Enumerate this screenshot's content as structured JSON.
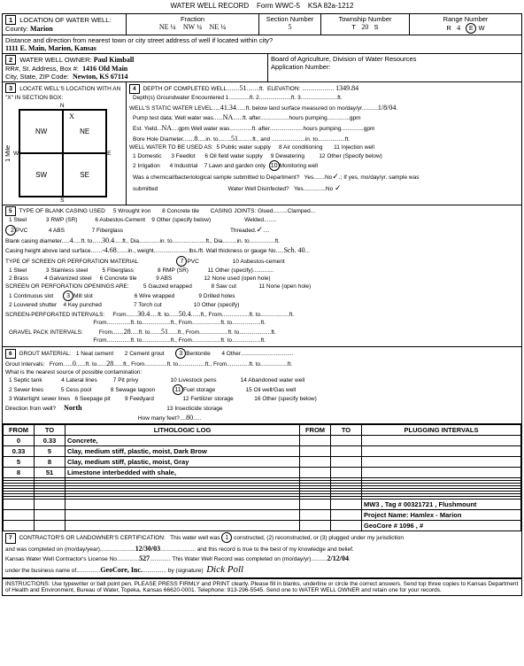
{
  "form": {
    "title": "WATER WELL RECORD",
    "code": "Form WWC-5",
    "ksa": "KSA 82a-1212"
  },
  "sec1": {
    "label": "LOCATION OF WATER WELL:",
    "county_label": "County:",
    "county": "Marion",
    "fraction_label": "Fraction",
    "f1": "NE ¼",
    "f2": "NW ¼",
    "f3": "NE ¼",
    "section_label": "Section Number",
    "section": "5",
    "township_label": "Township Number",
    "township_t": "T",
    "township": "20",
    "township_s": "S",
    "range_label": "Range Number",
    "range_r": "R",
    "range": "4",
    "range_e": "E",
    "range_w": "W",
    "dist_label": "Distance and direction from nearest town or city street address of well if located within city?",
    "dist": "1111 E. Main, Marion, Kansas"
  },
  "sec2": {
    "label": "WATER WELL OWNER:",
    "name": "Paul Kimball",
    "addr_label": "RR#, St. Address, Box #",
    "addr": "1416 Old Main",
    "city_label": "City, State, ZIP Code",
    "city": "Newton, KS  67114",
    "board": "Board of Agriculture, Division of Water Resources",
    "appno": "Application Number:"
  },
  "sec3": {
    "label": "LOCATE WELL'S LOCATION WITH AN \"X\" IN SECTION BOX:",
    "nw": "NW",
    "ne": "NE",
    "sw": "SW",
    "se": "SE",
    "n": "N",
    "s": "S",
    "e": "E",
    "w": "W",
    "mile": "1 Mile"
  },
  "sec4": {
    "label": "DEPTH OF COMPLETED WELL",
    "depth": "51",
    "ft": "ft.",
    "elev_label": "ELEVATION:",
    "elev": "1349.84",
    "gw_label": "Depth(s) Groundwater Encountered",
    "gw1": "1.",
    "gwft2": "ft.  2.",
    "gwft3": "ft.  3.",
    "gwend": "ft.",
    "swl_label": "WELL'S STATIC WATER LEVEL",
    "swl": "41.34",
    "swl_after": "ft. below land surface measured on mo/day/yr",
    "swl_date": "1/8/04",
    "pump_label": "Pump test data:  Well water was",
    "na": "NA",
    "after_label": "ft. after",
    "hours_label": "hours pumping",
    "gpm": "gpm",
    "est_label": "Est. Yield",
    "est_na": "NA",
    "est_gpm": "gpm  Well water was",
    "bore_label": "Bore Hole Diameter",
    "bore1": "8",
    "in_to": "in. to",
    "bore2": "51",
    "ft_and": "ft., and",
    "in_to2": "in. to",
    "ft_end": "ft.",
    "use_label": "WELL WATER TO BE USED AS:",
    "u1": "1 Domestic",
    "u2": "2 Irrigation",
    "u3": "3 Feedlot",
    "u4": "4 Industrial",
    "u5": "5 Public water supply",
    "u6": "6 Oil field water supply",
    "u7": "7 Lawn and garden only",
    "u8": "8 Air conditioning",
    "u9": "9 Dewatering",
    "u10": "10",
    "u10b": "Monitoring well",
    "u11": "11 Injection well",
    "u12": "12 Other (Specify below)",
    "chem_label": "Was a chemical/bacteriological sample submitted to Department?",
    "yes": "Yes",
    "no": "No",
    "checkNo": "✓",
    "if_yes": "If yes, mo/day/yr. sample was",
    "sub_label": "submitted",
    "disinf_label": "Water Well Disinfected?",
    "disinf_yes": "Yes",
    "disinf_no": "No",
    "checkNo2": "✓"
  },
  "sec5": {
    "label": "TYPE OF BLANK CASING USED",
    "c1": "1 Steel",
    "c2": "2",
    "c2b": "PVC",
    "c3": "3 RWP (SR)",
    "c4": "4 ABS",
    "c5": "5 Wrought iron",
    "c6": "6 Asbestos-Cement",
    "c7": "7 Fiberglass",
    "c8": "8 Concrete tile",
    "c9": "9 Other (specify below)",
    "joints_label": "CASING JOINTS:",
    "j_glued": "Glued",
    "j_clamp": "Clamped",
    "j_weld": "Welded",
    "j_thread": "Threaded",
    "check": "✓",
    "diam_label": "Blank casing diameter",
    "diam": "4",
    "to": "ft. to",
    "diam2": "30.4",
    "ftdia": "ft., Dia",
    "in_to": "in. to",
    "ft_dia2": "ft., Dia",
    "inend": "in. to",
    "ftend": "ft.",
    "height_label": "Casing height above land surface",
    "height": "-4.68",
    "wt_label": "in., weight",
    "wt_unit": "lbs./ft.  Wall thickness or gauge No.",
    "sch": "Sch. 40",
    "screen_label": "TYPE OF SCREEN OR PERFORATION MATERIAL",
    "s1": "1 Steel",
    "s2": "2 Brass",
    "s3": "3 Stainless steel",
    "s4": "4 Galvanized steel",
    "s5": "5 Fiberglass",
    "s6": "6 Concrete tile",
    "s7": "7",
    "s7b": "PVC",
    "s8": "8 RMP (SR)",
    "s9": "9 ABS",
    "s10": "10 Asbestos-cement",
    "s11": "11 Other (specify)",
    "s12": "12 None used (open hole)",
    "open_label": "SCREEN OR PERFORATION OPENINGS ARE:",
    "o1": "1 Continuous slot",
    "o2": "2 Louvered shutter",
    "o3": "3",
    "o3b": "Mill slot",
    "o4": "4 Key punched",
    "o5": "5 Gauzed wrapped",
    "o6": "6 Wire wrapped",
    "o7": "7 Torch cut",
    "o8": "8 Saw cut",
    "o9": "9 Drilled holes",
    "o10": "10 Other (specify)",
    "o11": "11 None (open hole)",
    "sperf_label": "SCREEN-PERFORATED INTERVALS:",
    "from": "From",
    "p1a": "30.4",
    "p1b": "50.4",
    "ft": "ft.",
    "from2": "From",
    "to2": "ft. to",
    "gravel_label": "GRAVEL PACK INTERVALS:",
    "g1a": "28",
    "g1b": "51"
  },
  "sec6": {
    "label": "GROUT MATERIAL:",
    "g1": "1 Neat cement",
    "g2": "2 Cement grout",
    "g3": "3",
    "g3b": "Bentonite",
    "g4": "4 Other",
    "gi_label": "Grout Intervals:",
    "from": "From",
    "gi1": "0",
    "to": "ft. to",
    "gi2": "28",
    "ft": "ft., From",
    "to2": "ft. to",
    "ft2": "ft., From",
    "ftend": "ft.",
    "contam_label": "What is the nearest source of possible contamination:",
    "n1": "1 Septic tank",
    "n2": "2 Sewer lines",
    "n3": "3 Watertight sewer lines",
    "n4": "4 Lateral lines",
    "n5": "5 Cess pool",
    "n6": "6 Seepage pit",
    "n7": "7 Pit privy",
    "n8": "8 Sewage lagoon",
    "n9": "9 Feedyard",
    "n10": "10 Livestock pens",
    "n11": "11",
    "n11b": "Fuel storage",
    "n12": "12 Fertilizer storage",
    "n13": "13 Insecticide storage",
    "n14": "14 Abandoned water well",
    "n15": "15 Oil well/Gas well",
    "n16": "16 Other (specify below)",
    "dir_label": "Direction from well?",
    "dir": "North",
    "dist_label": "How many feet?",
    "dist": "80"
  },
  "log": {
    "hdr": {
      "from": "FROM",
      "to": "TO",
      "lith": "LITHOLOGIC LOG",
      "from2": "FROM",
      "to2": "TO",
      "plug": "PLUGGING INTERVALS"
    },
    "rows": [
      {
        "f": "0",
        "t": "0.33",
        "d": "Concrete,"
      },
      {
        "f": "0.33",
        "t": "5",
        "d": "Clay, medium stiff, plastic, moist, Dark Brow"
      },
      {
        "f": "5",
        "t": "8",
        "d": "Clay, medium stiff, plastic, moist, Gray"
      },
      {
        "f": "8",
        "t": "51",
        "d": "Limestone interbedded with shale,"
      }
    ],
    "note1": "MW3 , Tag # 00321721 , Flushmount",
    "note2": "Project Name: Hamlex - Marion",
    "note3": "GeoCore # 1096 , #"
  },
  "sec7": {
    "label": "CONTRACTOR'S OR LANDOWNER'S CERTIFICATION:",
    "text1": "This water well was",
    "circ1": "1",
    "text2": "constructed, (2) reconstructed, or (3) plugged under my jurisdiction",
    "text3": "and was completed on (mo/day/year)",
    "date1": "12/30/03",
    "text4": "and this record is true to the best of my knowledge and belief.",
    "lic_label": "Kansas Water Well Contractor's License No.",
    "lic": "527",
    "rec_label": "This Water Well Record was completed on (mo/day/yr)",
    "date2": "2/12/04",
    "bus_label": "under the business name of",
    "bus": "GeoCore, Inc.",
    "sig_label": "by (signature)",
    "sig": "signature"
  },
  "footer": "INSTRUCTIONS:  Use typewriter or ball point pen.  PLEASE PRESS FIRMLY and PRINT clearly.  Please fill in blanks, underline or circle the correct answers.  Send top three copies to Kansas Department of Health and Environment, Bureau of Water, Topeka, Kansas 66620-0001.  Telephone: 913-296-5545.  Send one to WATER WELL OWNER and retain one for your records."
}
